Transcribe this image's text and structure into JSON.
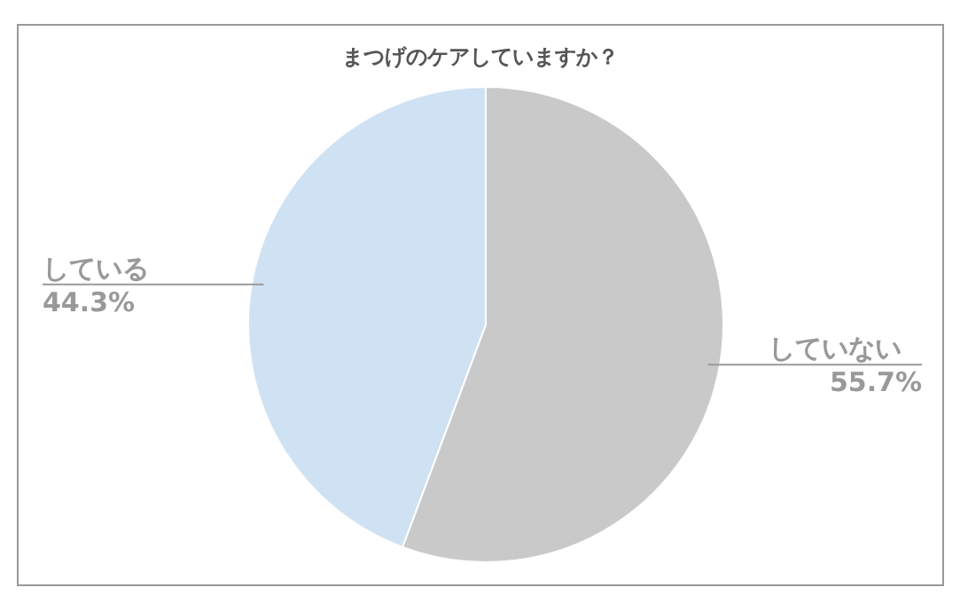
{
  "chart_data": {
    "type": "pie",
    "title": "まつげのケアしていますか？",
    "categories": [
      "していない",
      "している"
    ],
    "values": [
      55.7,
      44.3
    ],
    "colors": [
      "#c9c9c9",
      "#cfe2f3"
    ],
    "value_labels": [
      "55.7%",
      "44.3%"
    ],
    "legend": false
  }
}
